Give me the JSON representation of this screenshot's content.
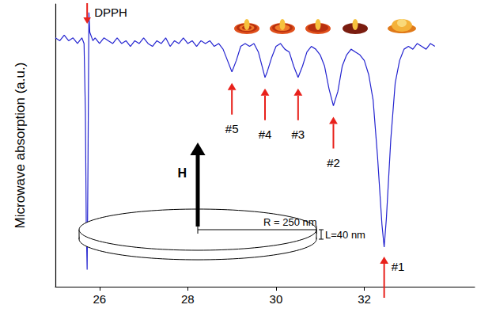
{
  "chart_data": {
    "type": "line",
    "y_label": "Microwave absorption (a.u.)",
    "x": [
      25.0,
      25.1,
      25.2,
      25.3,
      25.4,
      25.5,
      25.6,
      25.65,
      25.68,
      25.7,
      25.72,
      25.74,
      25.76,
      25.78,
      25.85,
      25.9,
      26.0,
      26.1,
      26.2,
      26.3,
      26.4,
      26.5,
      26.6,
      26.7,
      26.8,
      26.9,
      27.0,
      27.1,
      27.2,
      27.3,
      27.4,
      27.5,
      27.6,
      27.7,
      27.8,
      27.9,
      28.0,
      28.1,
      28.2,
      28.3,
      28.4,
      28.5,
      28.6,
      28.7,
      28.8,
      28.9,
      29.0,
      29.1,
      29.2,
      29.3,
      29.4,
      29.5,
      29.6,
      29.7,
      29.75,
      29.8,
      29.9,
      30.0,
      30.1,
      30.2,
      30.3,
      30.4,
      30.5,
      30.6,
      30.7,
      30.8,
      30.9,
      31.0,
      31.1,
      31.2,
      31.3,
      31.4,
      31.5,
      31.6,
      31.7,
      31.8,
      31.9,
      32.0,
      32.1,
      32.2,
      32.3,
      32.4,
      32.45,
      32.5,
      32.6,
      32.7,
      32.8,
      32.9,
      33.0,
      33.1,
      33.2,
      33.3,
      33.4,
      33.5,
      33.6
    ],
    "values": [
      88,
      87,
      89,
      87,
      88,
      86,
      88,
      86,
      62,
      22,
      6,
      45,
      97,
      90,
      87,
      88,
      86,
      88,
      87,
      86,
      88,
      86,
      87,
      85,
      87,
      86,
      88,
      86,
      85,
      87,
      86,
      88,
      85,
      87,
      86,
      88,
      86,
      87,
      85,
      87,
      86,
      87,
      85,
      86,
      84,
      80,
      76,
      80,
      85,
      86,
      85,
      86,
      83,
      77,
      74,
      76,
      81,
      85,
      86,
      84,
      83,
      78,
      74,
      78,
      83,
      85,
      84,
      82,
      78,
      70,
      64,
      69,
      78,
      82,
      84,
      83,
      82,
      80,
      75,
      66,
      46,
      22,
      14,
      24,
      52,
      72,
      80,
      84,
      85,
      84,
      86,
      85,
      84,
      86,
      85
    ],
    "color": "#2424d0",
    "xlim": [
      25,
      34.5
    ],
    "xticks": [
      26,
      28,
      30,
      32
    ],
    "ylim": [
      0,
      100
    ],
    "tick_labels": "x",
    "grid": false,
    "annotations": [
      {
        "text": "DPPH",
        "x": 25.72
      },
      {
        "text": "#1",
        "x": 32.45
      },
      {
        "text": "#2",
        "x": 31.3
      },
      {
        "text": "#3",
        "x": 30.5
      },
      {
        "text": "#4",
        "x": 29.75
      },
      {
        "text": "#5",
        "x": 29.0
      }
    ],
    "inset": {
      "field_label": "H",
      "radius_label": "R = 250 nm",
      "thickness_label": "L=40 nm"
    }
  }
}
